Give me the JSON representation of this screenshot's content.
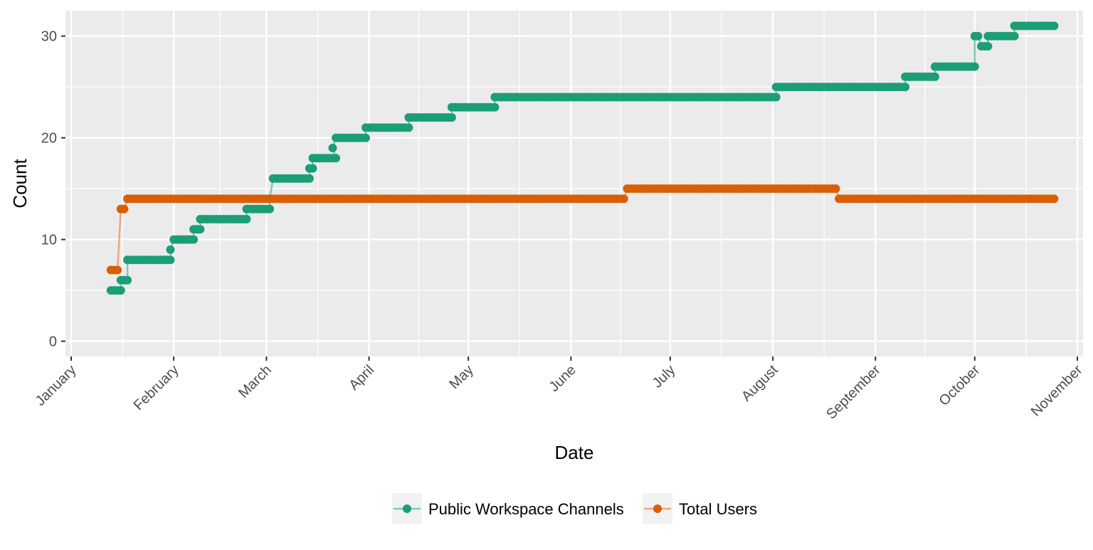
{
  "chart_data": {
    "type": "line",
    "title": "",
    "xlabel": "Date",
    "ylabel": "Count",
    "x_type": "date",
    "xlim": [
      "2018-01-01",
      "2018-11-01"
    ],
    "ylim": [
      -1.5,
      32.5
    ],
    "x_ticks": [
      {
        "date": "2018-01-01",
        "label": "January"
      },
      {
        "date": "2018-02-01",
        "label": "February"
      },
      {
        "date": "2018-03-01",
        "label": "March"
      },
      {
        "date": "2018-04-01",
        "label": "April"
      },
      {
        "date": "2018-05-01",
        "label": "May"
      },
      {
        "date": "2018-06-01",
        "label": "June"
      },
      {
        "date": "2018-07-01",
        "label": "July"
      },
      {
        "date": "2018-08-01",
        "label": "August"
      },
      {
        "date": "2018-09-01",
        "label": "September"
      },
      {
        "date": "2018-10-01",
        "label": "October"
      },
      {
        "date": "2018-11-01",
        "label": "November"
      }
    ],
    "y_ticks": [
      0,
      10,
      20,
      30
    ],
    "grid": true,
    "legend_position": "bottom",
    "series": [
      {
        "name": "Public Workspace Channels",
        "color": "#1b9e77",
        "line_color": "#7fcab4",
        "steps": [
          {
            "start": "2018-01-13",
            "end": "2018-01-16",
            "value": 5
          },
          {
            "start": "2018-01-16",
            "end": "2018-01-18",
            "value": 6
          },
          {
            "start": "2018-01-18",
            "end": "2018-01-31",
            "value": 8
          },
          {
            "start": "2018-01-31",
            "end": "2018-01-31",
            "value": 9
          },
          {
            "start": "2018-02-01",
            "end": "2018-02-07",
            "value": 10
          },
          {
            "start": "2018-02-07",
            "end": "2018-02-09",
            "value": 11
          },
          {
            "start": "2018-02-09",
            "end": "2018-02-23",
            "value": 12
          },
          {
            "start": "2018-02-23",
            "end": "2018-03-02",
            "value": 13
          },
          {
            "start": "2018-03-02",
            "end": "2018-03-02",
            "value": 14
          },
          {
            "start": "2018-03-03",
            "end": "2018-03-14",
            "value": 16
          },
          {
            "start": "2018-03-14",
            "end": "2018-03-15",
            "value": 17
          },
          {
            "start": "2018-03-15",
            "end": "2018-03-22",
            "value": 18
          },
          {
            "start": "2018-03-21",
            "end": "2018-03-21",
            "value": 19
          },
          {
            "start": "2018-03-22",
            "end": "2018-03-31",
            "value": 20
          },
          {
            "start": "2018-03-31",
            "end": "2018-04-13",
            "value": 21
          },
          {
            "start": "2018-04-13",
            "end": "2018-04-26",
            "value": 22
          },
          {
            "start": "2018-04-26",
            "end": "2018-05-09",
            "value": 23
          },
          {
            "start": "2018-05-09",
            "end": "2018-08-02",
            "value": 24
          },
          {
            "start": "2018-08-02",
            "end": "2018-09-10",
            "value": 25
          },
          {
            "start": "2018-09-10",
            "end": "2018-09-19",
            "value": 26
          },
          {
            "start": "2018-09-19",
            "end": "2018-10-01",
            "value": 27
          },
          {
            "start": "2018-10-01",
            "end": "2018-10-02",
            "value": 30
          },
          {
            "start": "2018-10-03",
            "end": "2018-10-05",
            "value": 29
          },
          {
            "start": "2018-10-05",
            "end": "2018-10-13",
            "value": 30
          },
          {
            "start": "2018-10-13",
            "end": "2018-10-25",
            "value": 31
          }
        ]
      },
      {
        "name": "Total Users",
        "color": "#d95f02",
        "line_color": "#eaa77a",
        "steps": [
          {
            "start": "2018-01-13",
            "end": "2018-01-15",
            "value": 7
          },
          {
            "start": "2018-01-16",
            "end": "2018-01-17",
            "value": 13
          },
          {
            "start": "2018-01-18",
            "end": "2018-06-17",
            "value": 14
          },
          {
            "start": "2018-06-18",
            "end": "2018-08-20",
            "value": 15
          },
          {
            "start": "2018-08-21",
            "end": "2018-10-25",
            "value": 14
          }
        ]
      }
    ]
  }
}
